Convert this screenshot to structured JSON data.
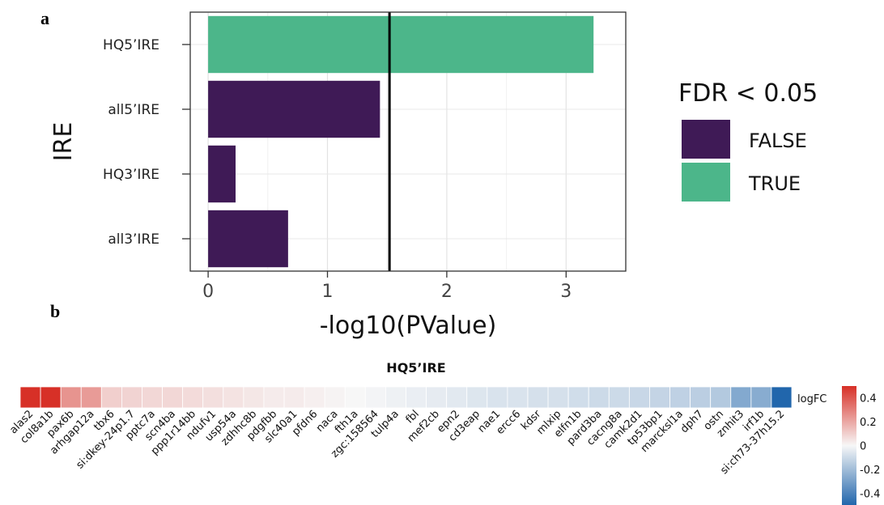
{
  "panels": {
    "a": "a",
    "b": "b"
  },
  "chart_data": [
    {
      "type": "bar",
      "orientation": "horizontal",
      "categories": [
        "HQ5’IRE",
        "all5’IRE",
        "HQ3’IRE",
        "all3’IRE"
      ],
      "values": [
        3.23,
        1.44,
        0.23,
        0.67
      ],
      "fdr_significant": [
        true,
        false,
        false,
        false
      ],
      "xlabel": "-log10(PValue)",
      "ylabel": "IRE",
      "xlim": [
        -0.15,
        3.5
      ],
      "xticks": [
        0,
        1,
        2,
        3
      ],
      "threshold_line": 1.52,
      "grid": true,
      "legend": {
        "title": "FDR < 0.05",
        "placement": "right",
        "entries": [
          {
            "label": "FALSE",
            "color": "#3f1a56"
          },
          {
            "label": "TRUE",
            "color": "#4cb68a"
          }
        ]
      }
    },
    {
      "type": "heatmap",
      "title": "HQ5’IRE",
      "row_label": "logFC",
      "genes": [
        "alas2",
        "col8a1b",
        "pax6b",
        "arhgap12a",
        "tbx6",
        "si:dkey-24p1.7",
        "pptc7a",
        "scn4ba",
        "ppp1r14bb",
        "ndufv1",
        "usp54a",
        "zdhhc8b",
        "pdgfbb",
        "slc40a1",
        "pfdn6",
        "naca",
        "fth1a",
        "zgc:158564",
        "tulp4a",
        "fbl",
        "mef2cb",
        "epn2",
        "cd3eap",
        "nae1",
        "ercc6",
        "kdsr",
        "mlxip",
        "elfn1b",
        "pard3ba",
        "cacng8a",
        "camk2d1",
        "tp53bp1",
        "marcksl1a",
        "dph7",
        "ostn",
        "znhit3",
        "irf1b",
        "si:ch73-37h15.2"
      ],
      "values": [
        0.5,
        0.5,
        0.25,
        0.23,
        0.1,
        0.09,
        0.08,
        0.08,
        0.07,
        0.06,
        0.05,
        0.04,
        0.03,
        0.03,
        0.02,
        0.01,
        0.0,
        -0.01,
        -0.02,
        -0.03,
        -0.04,
        -0.05,
        -0.06,
        -0.07,
        -0.07,
        -0.08,
        -0.08,
        -0.09,
        -0.1,
        -0.1,
        -0.11,
        -0.12,
        -0.13,
        -0.14,
        -0.16,
        -0.27,
        -0.26,
        -0.5
      ],
      "colorbar": {
        "ticks": [
          "0.4",
          "0.2",
          "0",
          "-0.2",
          "-0.4"
        ],
        "tick_values": [
          0.4,
          0.2,
          0,
          -0.2,
          -0.4
        ],
        "range": [
          -0.5,
          0.5
        ]
      },
      "colors": {
        "high": "#d73027",
        "mid": "#f7f7f7",
        "low": "#2166ac"
      }
    }
  ]
}
